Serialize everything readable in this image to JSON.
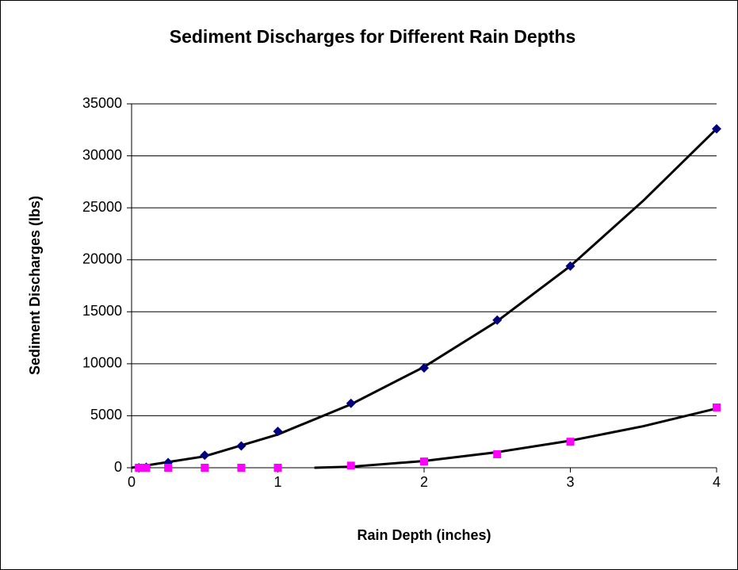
{
  "chart_data": {
    "type": "scatter",
    "title": "Sediment Discharges for Different Rain Depths",
    "x_label": "Rain Depth (inches)",
    "y_label": "Sediment Discharges (lbs)",
    "xlim": [
      0,
      4
    ],
    "xticks": [
      0,
      1,
      2,
      3,
      4
    ],
    "ylim": [
      0,
      35000
    ],
    "yticks": [
      0,
      5000,
      10000,
      15000,
      20000,
      25000,
      30000,
      35000
    ],
    "grid": true,
    "series": [
      {
        "color": "#000080",
        "marker": "diamond",
        "x": [
          0.05,
          0.1,
          0.25,
          0.5,
          0.75,
          1,
          1.5,
          2,
          2.5,
          3,
          4
        ],
        "values": [
          0,
          50,
          500,
          1200,
          2100,
          3500,
          6200,
          9600,
          14200,
          19400,
          32600
        ]
      },
      {
        "color": "#ff00ff",
        "marker": "square",
        "x": [
          0.05,
          0.1,
          0.25,
          0.5,
          0.75,
          1,
          1.5,
          2,
          2.5,
          3,
          4
        ],
        "values": [
          0,
          0,
          0,
          0,
          0,
          0,
          200,
          600,
          1300,
          2500,
          5800
        ]
      }
    ],
    "trendlines": [
      {
        "color": "#000000",
        "x": [
          0,
          0.5,
          1,
          1.5,
          2,
          2.5,
          3,
          3.5,
          4
        ],
        "values": [
          0,
          1100,
          3200,
          6100,
          9700,
          14100,
          19400,
          25700,
          32600
        ]
      },
      {
        "color": "#000000",
        "x": [
          1.25,
          1.5,
          2,
          2.5,
          3,
          3.5,
          4
        ],
        "values": [
          0,
          100,
          650,
          1500,
          2600,
          4000,
          5700
        ]
      }
    ]
  }
}
